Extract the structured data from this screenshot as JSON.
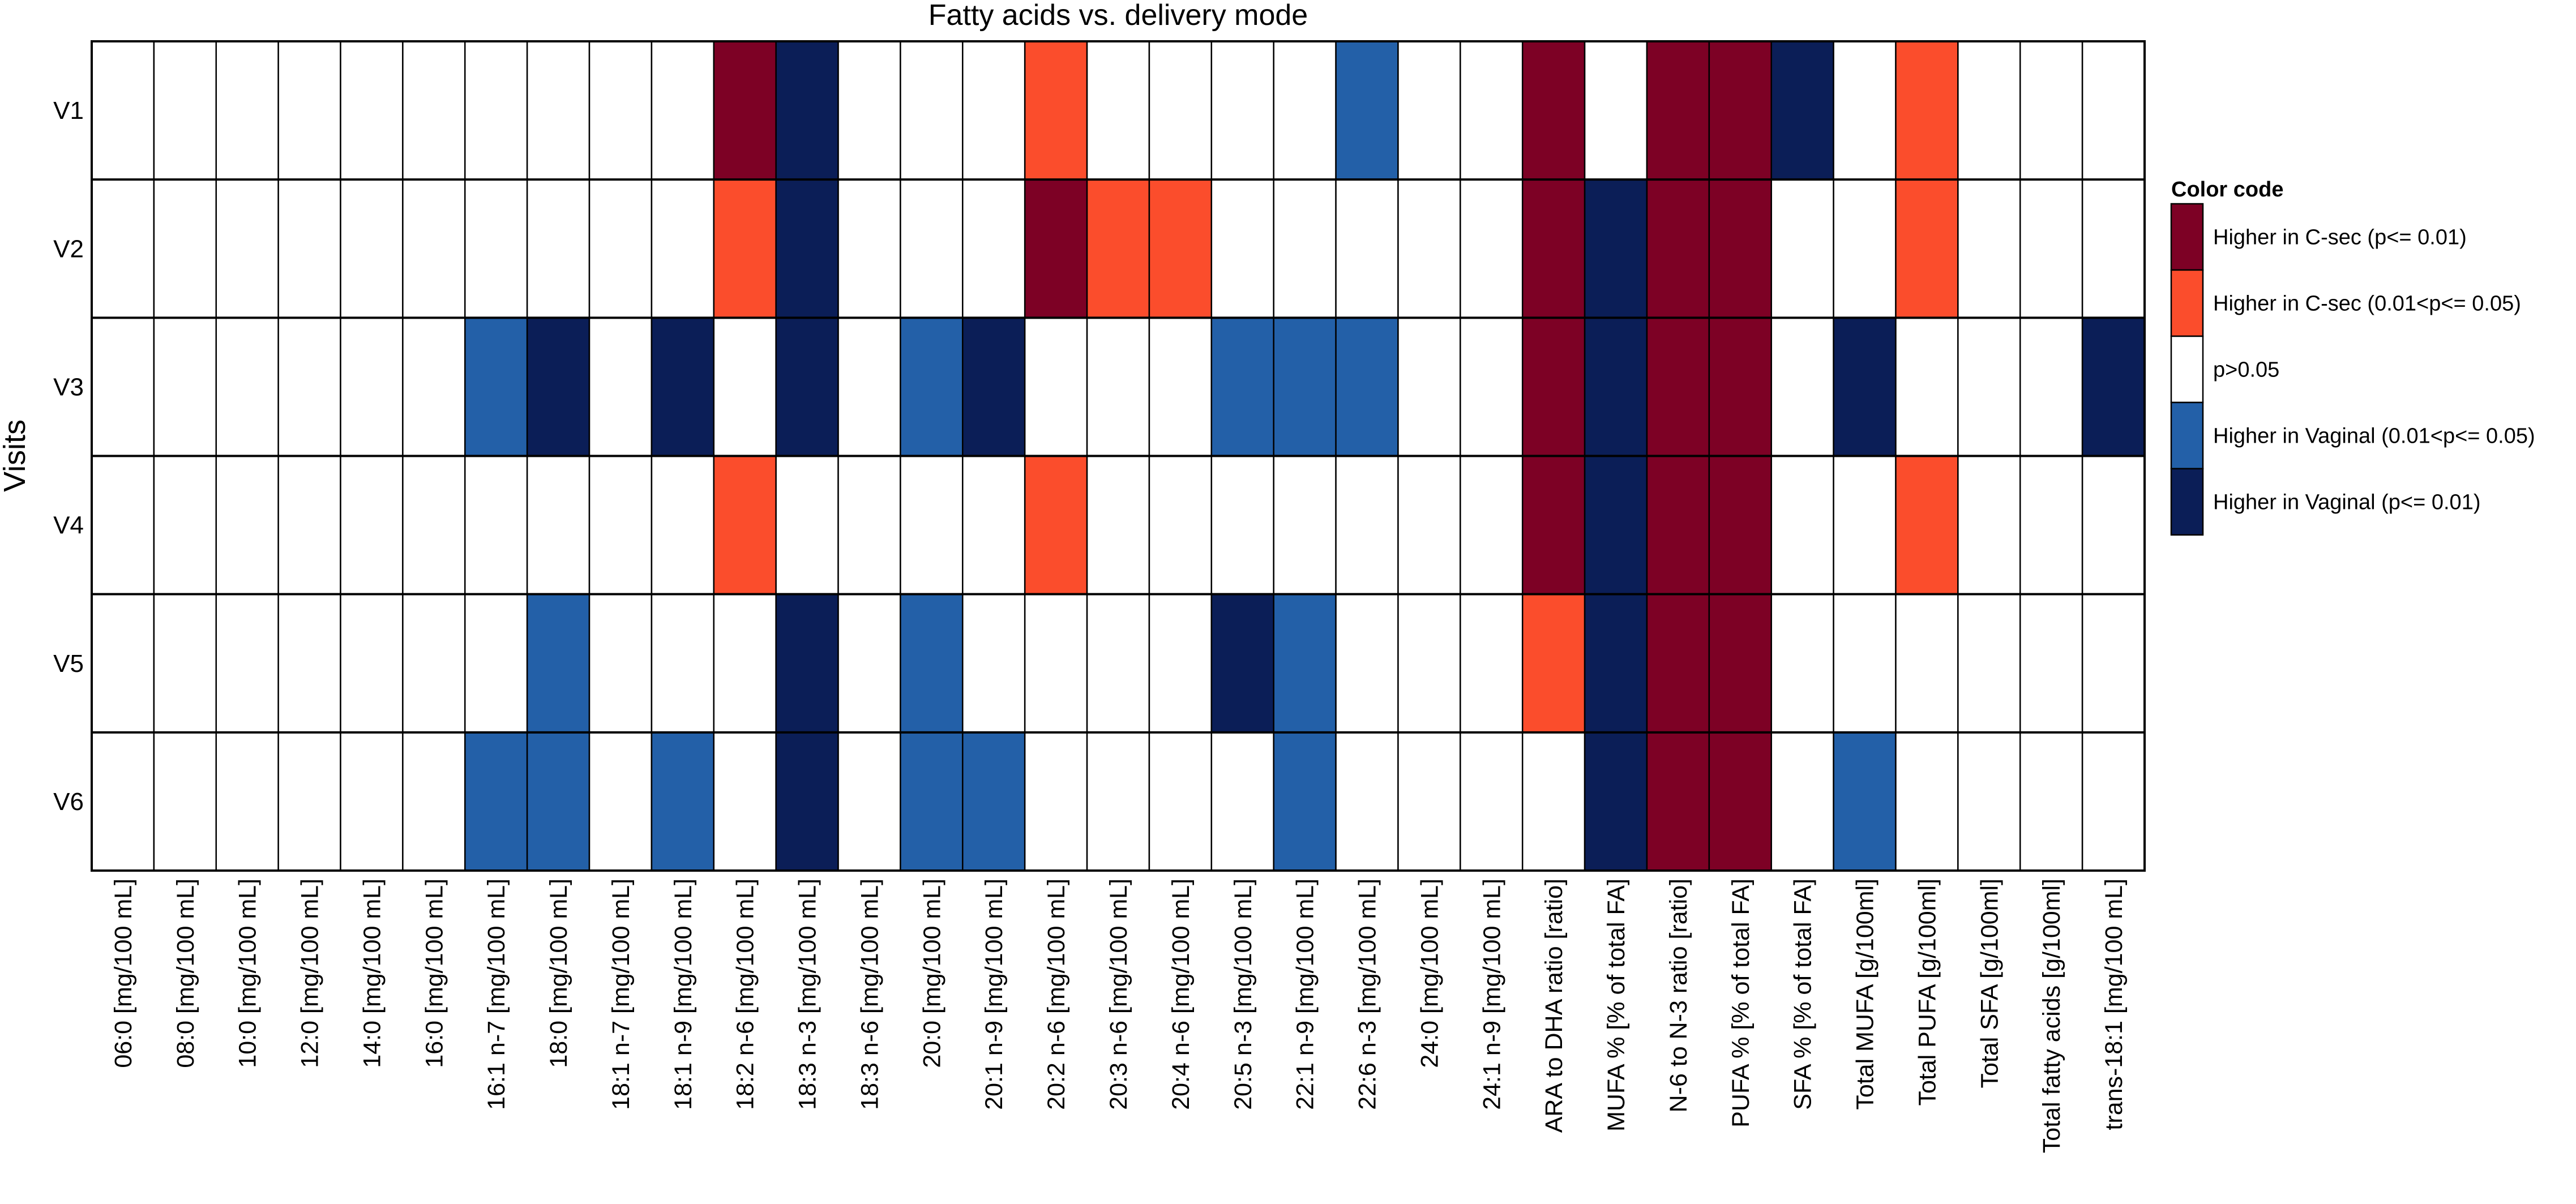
{
  "chart_data": {
    "type": "heatmap",
    "title": "Fatty acids vs. delivery mode",
    "ylabel": "Visits",
    "xlabel": "",
    "rows": [
      "V1",
      "V2",
      "V3",
      "V4",
      "V5",
      "V6"
    ],
    "columns": [
      "06:0 [mg/100 mL]",
      "08:0 [mg/100 mL]",
      "10:0 [mg/100 mL]",
      "12:0 [mg/100 mL]",
      "14:0 [mg/100 mL]",
      "16:0 [mg/100 mL]",
      "16:1 n-7 [mg/100 mL]",
      "18:0 [mg/100 mL]",
      "18:1 n-7 [mg/100 mL]",
      "18:1 n-9 [mg/100 mL]",
      "18:2 n-6 [mg/100 mL]",
      "18:3 n-3 [mg/100 mL]",
      "18:3 n-6 [mg/100 mL]",
      "20:0 [mg/100 mL]",
      "20:1 n-9 [mg/100 mL]",
      "20:2 n-6 [mg/100 mL]",
      "20:3 n-6 [mg/100 mL]",
      "20:4 n-6 [mg/100 mL]",
      "20:5 n-3 [mg/100 mL]",
      "22:1 n-9 [mg/100 mL]",
      "22:6 n-3 [mg/100 mL]",
      "24:0 [mg/100 mL]",
      "24:1 n-9 [mg/100 mL]",
      "ARA to DHA ratio [ratio]",
      "MUFA % [% of total FA]",
      "N-6 to N-3 ratio [ratio]",
      "PUFA % [% of total FA]",
      "SFA % [% of total FA]",
      "Total MUFA [g/100ml]",
      "Total PUFA [g/100ml]",
      "Total SFA [g/100ml]",
      "Total fatty acids [g/100ml]",
      "trans-18:1 [mg/100 mL]"
    ],
    "category_codes": {
      "2": "Higher in C-sec (p<= 0.01)",
      "1": "Higher in C-sec (0.01<p<= 0.05)",
      "0": "p>0.05",
      "-1": "Higher in Vaginal (0.01<p<= 0.05)",
      "-2": "Higher in Vaginal (p<= 0.01)"
    },
    "values": [
      [
        0,
        0,
        0,
        0,
        0,
        0,
        0,
        0,
        0,
        0,
        2,
        -2,
        0,
        0,
        0,
        1,
        0,
        0,
        0,
        0,
        -1,
        0,
        0,
        2,
        0,
        2,
        2,
        -2,
        0,
        1,
        0,
        0,
        0
      ],
      [
        0,
        0,
        0,
        0,
        0,
        0,
        0,
        0,
        0,
        0,
        1,
        -2,
        0,
        0,
        0,
        2,
        1,
        1,
        0,
        0,
        0,
        0,
        0,
        2,
        -2,
        2,
        2,
        0,
        0,
        1,
        0,
        0,
        0
      ],
      [
        0,
        0,
        0,
        0,
        0,
        0,
        -1,
        -2,
        0,
        -2,
        0,
        -2,
        0,
        -1,
        -2,
        0,
        0,
        0,
        -1,
        -1,
        -1,
        0,
        0,
        2,
        -2,
        2,
        2,
        0,
        -2,
        0,
        0,
        0,
        -2
      ],
      [
        0,
        0,
        0,
        0,
        0,
        0,
        0,
        0,
        0,
        0,
        1,
        0,
        0,
        0,
        0,
        1,
        0,
        0,
        0,
        0,
        0,
        0,
        0,
        2,
        -2,
        2,
        2,
        0,
        0,
        1,
        0,
        0,
        0
      ],
      [
        0,
        0,
        0,
        0,
        0,
        0,
        0,
        -1,
        0,
        0,
        0,
        -2,
        0,
        -1,
        0,
        0,
        0,
        0,
        -2,
        -1,
        0,
        0,
        0,
        1,
        -2,
        2,
        2,
        0,
        0,
        0,
        0,
        0,
        0
      ],
      [
        0,
        0,
        0,
        0,
        0,
        0,
        -1,
        -1,
        0,
        -1,
        0,
        -2,
        0,
        -1,
        -1,
        0,
        0,
        0,
        0,
        -1,
        0,
        0,
        0,
        0,
        -2,
        2,
        2,
        0,
        -1,
        0,
        0,
        0,
        0
      ]
    ],
    "legend": {
      "title": "Color code",
      "position": "right",
      "items": [
        {
          "code": 2,
          "label": "Higher in C-sec (p<= 0.01)",
          "color": "#7d0125"
        },
        {
          "code": 1,
          "label": "Higher in C-sec (0.01<p<= 0.05)",
          "color": "#fb4d2c"
        },
        {
          "code": 0,
          "label": "p>0.05",
          "color": "#ffffff"
        },
        {
          "code": -1,
          "label": "Higher in Vaginal (0.01<p<= 0.05)",
          "color": "#2360a8"
        },
        {
          "code": -2,
          "label": "Higher in Vaginal (p<= 0.01)",
          "color": "#0b1e57"
        }
      ]
    }
  }
}
